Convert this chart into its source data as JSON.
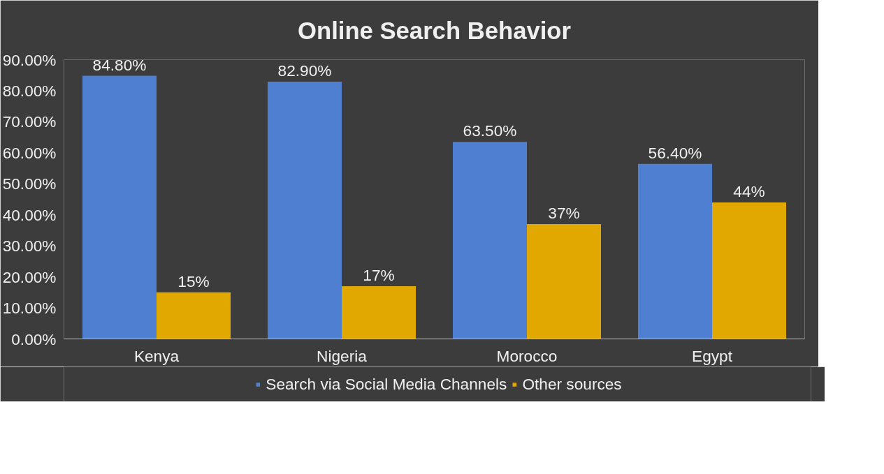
{
  "chart_data": {
    "type": "bar",
    "title": "Online Search Behavior",
    "categories": [
      "Kenya",
      "Nigeria",
      "Morocco",
      "Egypt"
    ],
    "series": [
      {
        "name": "Search via Social Media Channels",
        "color": "#4f7fd0",
        "values": [
          84.8,
          82.9,
          63.5,
          56.4
        ],
        "value_labels": [
          "84.80%",
          "82.90%",
          "63.50%",
          "56.40%"
        ]
      },
      {
        "name": "Other sources",
        "color": "#e0a800",
        "values": [
          15,
          17,
          37,
          44
        ],
        "value_labels": [
          "15%",
          "17%",
          "37%",
          "44%"
        ]
      }
    ],
    "ylim": [
      0,
      90
    ],
    "yticks": [
      {
        "value": 0,
        "label": "0.00%"
      },
      {
        "value": 10,
        "label": "10.00%"
      },
      {
        "value": 20,
        "label": "20.00%"
      },
      {
        "value": 30,
        "label": "30.00%"
      },
      {
        "value": 40,
        "label": "40.00%"
      },
      {
        "value": 50,
        "label": "50.00%"
      },
      {
        "value": 60,
        "label": "60.00%"
      },
      {
        "value": 70,
        "label": "70.00%"
      },
      {
        "value": 80,
        "label": "80.00%"
      },
      {
        "value": 90,
        "label": "90.00%"
      }
    ],
    "grid": false,
    "legend": "bottom"
  }
}
